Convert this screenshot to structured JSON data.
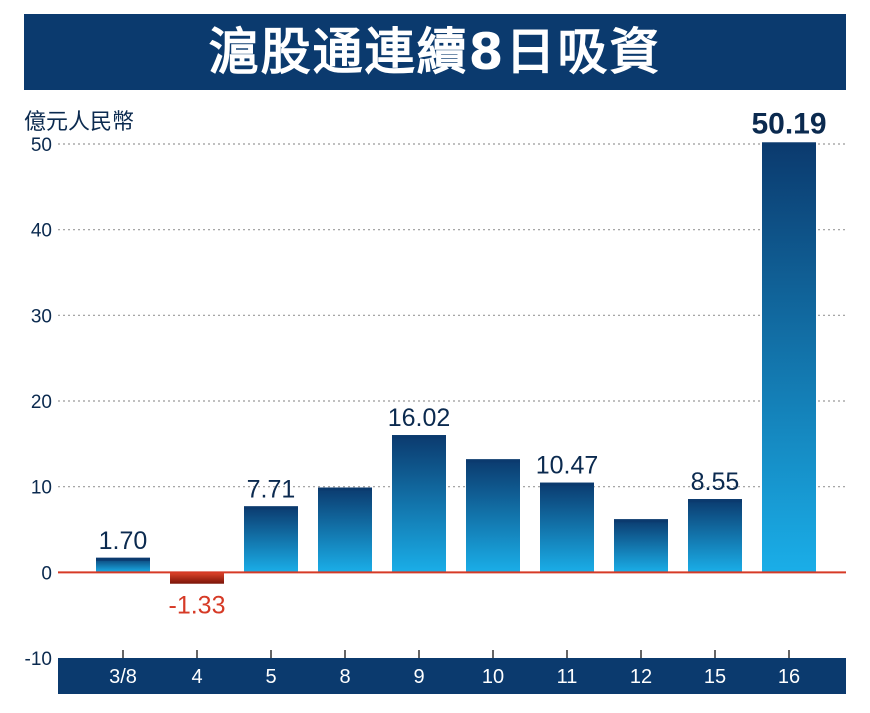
{
  "title": "滬股通連續8日吸資",
  "unit": "億元人民幣",
  "colors": {
    "title_bg": "#0b3a6e",
    "bar_top": "#0b3a6e",
    "bar_bottom": "#1aaee8",
    "negative_top": "#e0452a",
    "negative_bottom": "#7a1408",
    "zero_line": "#d63a26",
    "axis_bar": "#0b3a6e",
    "label_text": "#0b2a4f",
    "negative_label": "#d63a26"
  },
  "chart_data": {
    "type": "bar",
    "title": "滬股通連續8日吸資",
    "ylabel": "億元人民幣",
    "xlabel": "",
    "ylim": [
      -10,
      50
    ],
    "yticks": [
      50,
      40,
      30,
      20,
      10,
      0,
      -10
    ],
    "grid": true,
    "categories": [
      "3/8",
      "4",
      "5",
      "8",
      "9",
      "10",
      "11",
      "12",
      "15",
      "16"
    ],
    "values": [
      1.7,
      -1.33,
      7.71,
      9.9,
      16.02,
      13.2,
      10.47,
      6.2,
      8.55,
      50.19
    ],
    "data_labels": [
      "1.70",
      "-1.33",
      "7.71",
      "",
      "16.02",
      "",
      "10.47",
      "",
      "8.55",
      "50.19"
    ]
  }
}
